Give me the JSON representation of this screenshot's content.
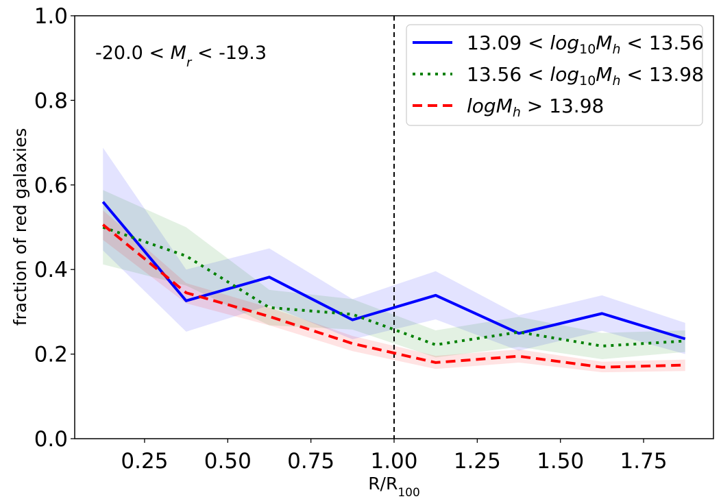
{
  "chart_data": {
    "type": "line",
    "title": "",
    "xlabel": "R/R",
    "xlabel_sub": "100",
    "ylabel": "fraction of red galaxies",
    "xlim": [
      0.04,
      1.96
    ],
    "ylim": [
      0.0,
      1.0
    ],
    "x": [
      0.125,
      0.375,
      0.625,
      0.875,
      1.125,
      1.375,
      1.625,
      1.875
    ],
    "xticks": [
      0.25,
      0.5,
      0.75,
      1.0,
      1.25,
      1.5,
      1.75
    ],
    "xtick_labels": [
      "0.25",
      "0.50",
      "0.75",
      "1.00",
      "1.25",
      "1.50",
      "1.75"
    ],
    "yticks": [
      0.0,
      0.2,
      0.4,
      0.6,
      0.8,
      1.0
    ],
    "ytick_labels": [
      "0.0",
      "0.2",
      "0.4",
      "0.6",
      "0.8",
      "1.0"
    ],
    "vline": 1.0,
    "annotation": {
      "prefix": "-20.0 < ",
      "var": "M",
      "sub": "r",
      "suffix": " < -19.3"
    },
    "legend_position": "top-right",
    "series": [
      {
        "name": "13.09 < log10Mh < 13.56",
        "legend": {
          "left": "13.09 < ",
          "var": "log",
          "sub1": "10",
          "var2": "M",
          "sub2": "h",
          "right": " < 13.56"
        },
        "color": "#0000ff",
        "style": "solid",
        "values": [
          0.56,
          0.326,
          0.382,
          0.281,
          0.339,
          0.249,
          0.296,
          0.236
        ],
        "lower": [
          0.445,
          0.253,
          0.315,
          0.235,
          0.282,
          0.208,
          0.255,
          0.2
        ],
        "upper": [
          0.688,
          0.4,
          0.45,
          0.33,
          0.396,
          0.292,
          0.339,
          0.274
        ]
      },
      {
        "name": "13.56 < log10Mh < 13.98",
        "legend": {
          "left": "13.56 < ",
          "var": "log",
          "sub1": "10",
          "var2": "M",
          "sub2": "h",
          "right": " < 13.98"
        },
        "color": "#008000",
        "style": "dotted",
        "values": [
          0.5,
          0.432,
          0.31,
          0.294,
          0.222,
          0.252,
          0.219,
          0.231
        ],
        "lower": [
          0.412,
          0.362,
          0.268,
          0.258,
          0.192,
          0.217,
          0.188,
          0.205
        ],
        "upper": [
          0.588,
          0.5,
          0.352,
          0.33,
          0.256,
          0.288,
          0.25,
          0.256
        ]
      },
      {
        "name": "logMh > 13.98",
        "legend": {
          "left": "",
          "var": "log",
          "sub1": "",
          "var2": "M",
          "sub2": "h",
          "right": " > 13.98"
        },
        "color": "#ff0000",
        "style": "dashed",
        "values": [
          0.506,
          0.345,
          0.289,
          0.225,
          0.18,
          0.195,
          0.169,
          0.174
        ],
        "lower": [
          0.47,
          0.32,
          0.268,
          0.207,
          0.165,
          0.18,
          0.157,
          0.16
        ],
        "upper": [
          0.54,
          0.368,
          0.31,
          0.243,
          0.196,
          0.211,
          0.182,
          0.187
        ]
      }
    ]
  }
}
